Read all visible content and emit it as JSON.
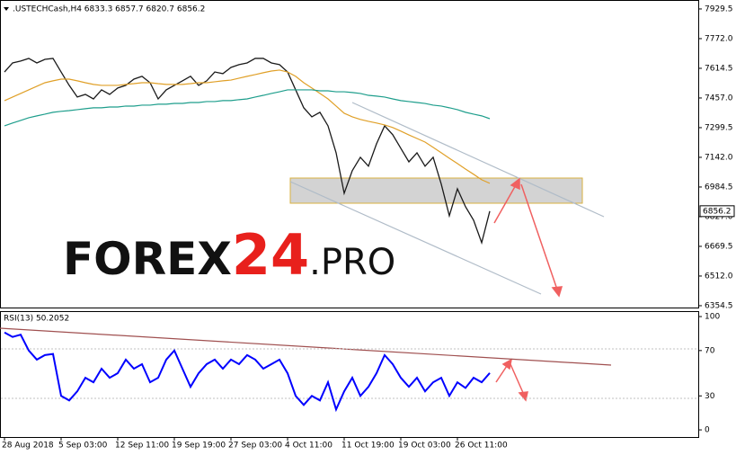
{
  "chart_data": [
    {
      "type": "line",
      "title": ".USTECHCash,H4  6833.3 6857.7 6820.7 6856.2",
      "watermark": [
        "FOREX",
        "24",
        ".PRO"
      ],
      "categories": [
        "28 Aug 2018",
        null,
        null,
        null,
        null,
        null,
        null,
        "5 Sep 03:00",
        null,
        null,
        null,
        null,
        null,
        null,
        "12 Sep 11:00",
        null,
        null,
        null,
        null,
        null,
        null,
        "19 Sep 19:00",
        null,
        null,
        null,
        null,
        null,
        null,
        "27 Sep 03:00",
        null,
        null,
        null,
        null,
        null,
        null,
        "4 Oct 11:00",
        null,
        null,
        null,
        null,
        null,
        null,
        "11 Oct 19:00",
        null,
        null,
        null,
        null,
        null,
        null,
        "19 Oct 03:00",
        null,
        null,
        null,
        null,
        null,
        null,
        "26 Oct 11:00",
        null,
        null,
        null,
        null
      ],
      "series": [
        {
          "color": "#1a1a1a",
          "values": [
            7595,
            7643,
            7653,
            7667,
            7643,
            7662,
            7667,
            7595,
            7524,
            7462,
            7476,
            7452,
            7500,
            7476,
            7510,
            7524,
            7557,
            7572,
            7538,
            7452,
            7500,
            7524,
            7548,
            7572,
            7524,
            7548,
            7595,
            7586,
            7619,
            7634,
            7643,
            7667,
            7667,
            7643,
            7634,
            7595,
            7500,
            7405,
            7357,
            7381,
            7309,
            7166,
            6951,
            7071,
            7142,
            7095,
            7214,
            7309,
            7262,
            7190,
            7118,
            7166,
            7095,
            7142,
            7000,
            6832,
            6975,
            6880,
            6808,
            6689,
            6856.2
          ]
        },
        {
          "color": "#e0a028",
          "values": [
            7443,
            7462,
            7481,
            7500,
            7519,
            7538,
            7548,
            7557,
            7557,
            7548,
            7538,
            7529,
            7524,
            7524,
            7524,
            7529,
            7533,
            7538,
            7538,
            7533,
            7529,
            7529,
            7529,
            7533,
            7538,
            7538,
            7543,
            7548,
            7552,
            7562,
            7572,
            7581,
            7591,
            7600,
            7605,
            7595,
            7572,
            7538,
            7510,
            7481,
            7452,
            7414,
            7376,
            7357,
            7343,
            7333,
            7324,
            7314,
            7300,
            7281,
            7261,
            7242,
            7223,
            7195,
            7166,
            7137,
            7109,
            7080,
            7052,
            7023,
            7004
          ]
        },
        {
          "color": "#1e9e8c",
          "values": [
            7309,
            7324,
            7338,
            7352,
            7362,
            7371,
            7381,
            7386,
            7390,
            7395,
            7400,
            7405,
            7405,
            7409,
            7409,
            7414,
            7414,
            7419,
            7419,
            7424,
            7424,
            7428,
            7428,
            7433,
            7433,
            7438,
            7438,
            7443,
            7443,
            7448,
            7452,
            7462,
            7471,
            7481,
            7490,
            7500,
            7500,
            7500,
            7500,
            7495,
            7495,
            7490,
            7490,
            7486,
            7481,
            7471,
            7467,
            7462,
            7452,
            7443,
            7438,
            7433,
            7428,
            7419,
            7414,
            7405,
            7395,
            7381,
            7371,
            7362,
            7347
          ]
        }
      ],
      "ylim": [
        6340,
        7977
      ],
      "yticks": [
        7929.5,
        {
          "value": 7772,
          "label": "7772.0"
        },
        7614.5,
        {
          "value": 7457,
          "label": "7457.0"
        },
        7299.5,
        {
          "value": 7142,
          "label": "7142.0"
        },
        6984.5,
        {
          "value": 6827,
          "label": "6827.0"
        },
        6669.5,
        {
          "value": 6512,
          "label": "6512.0"
        },
        6354.5
      ]
    },
    {
      "type": "line",
      "title": "RSI(13) 50.2052",
      "series": [
        {
          "color": "#0000ff",
          "values": [
            86,
            82,
            84,
            70,
            62,
            66,
            67,
            30,
            26,
            34,
            46,
            42,
            54,
            46,
            50,
            62,
            54,
            58,
            42,
            46,
            62,
            70,
            54,
            38,
            50,
            58,
            62,
            54,
            62,
            58,
            66,
            62,
            54,
            58,
            62,
            50,
            30,
            22,
            30,
            26,
            42,
            18,
            34,
            46,
            30,
            38,
            50,
            66,
            58,
            46,
            38,
            46,
            34,
            42,
            46,
            30,
            42,
            37,
            46,
            42,
            50.2052
          ]
        }
      ],
      "ylim": [
        -6.3,
        104.8
      ],
      "yticks": [
        100,
        70,
        30,
        0
      ]
    }
  ]
}
